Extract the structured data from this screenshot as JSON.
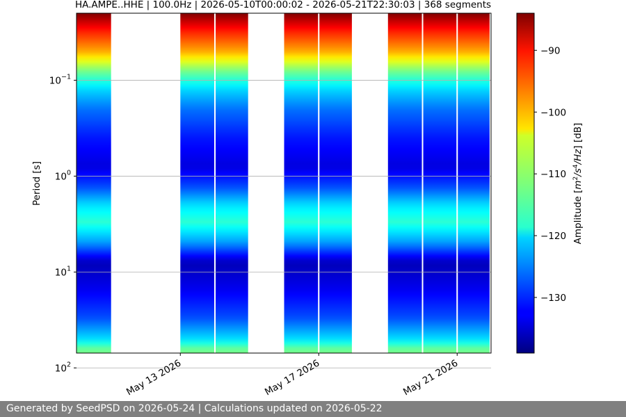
{
  "chart_data": {
    "type": "heatmap",
    "title": "HA.AMPE..HHE | 100.0Hz | 2026-05-10T00:00:02 - 2026-05-21T22:30:03 | 368 segments",
    "ylabel": "Period [s]",
    "y_scale": "log",
    "y_inverted": true,
    "ylim_s": [
      0.02,
      70
    ],
    "y_ticks": [
      {
        "value": 0.1,
        "base": "10",
        "exp": "−1"
      },
      {
        "value": 1,
        "base": "10",
        "exp": "0"
      },
      {
        "value": 10,
        "base": "10",
        "exp": "1"
      },
      {
        "value": 100,
        "base": "10",
        "exp": "2"
      }
    ],
    "x_type": "date",
    "x_ticks": [
      "May 13 2026",
      "May 17 2026",
      "May 21 2026"
    ],
    "data_blocks": [
      {
        "start": "2026-05-10T00:00:02",
        "end": "2026-05-11T00:00:00"
      },
      {
        "start": "2026-05-13T00:00:00",
        "end": "2026-05-14T23:00:00"
      },
      {
        "start": "2026-05-16T00:00:00",
        "end": "2026-05-17T23:00:00"
      },
      {
        "start": "2026-05-19T00:00:00",
        "end": "2026-05-21T22:30:03"
      }
    ],
    "gap_lines": [
      "2026-05-14T00:00:00",
      "2026-05-17T00:00:00",
      "2026-05-20T00:00:00",
      "2026-05-21T00:00:00"
    ],
    "colorbar": {
      "label_prefix": "Amplitude [",
      "unit_m": "m",
      "unit_m_exp": "2",
      "unit_slash": "/s",
      "unit_s_exp": "4",
      "unit_hz": "/Hz",
      "label_suffix": "] [dB]",
      "range_db": [
        -139,
        -84
      ],
      "ticks": [
        "−90",
        "−100",
        "−110",
        "−120",
        "−130"
      ],
      "tick_values": [
        -90,
        -100,
        -110,
        -120,
        -130
      ],
      "colormap": "jet"
    },
    "amplitude_profile": [
      {
        "period_s": 0.02,
        "db": -84
      },
      {
        "period_s": 0.03,
        "db": -92
      },
      {
        "period_s": 0.05,
        "db": -100
      },
      {
        "period_s": 0.08,
        "db": -112
      },
      {
        "period_s": 0.12,
        "db": -120
      },
      {
        "period_s": 0.2,
        "db": -126
      },
      {
        "period_s": 0.4,
        "db": -131
      },
      {
        "period_s": 0.8,
        "db": -134
      },
      {
        "period_s": 1.3,
        "db": -128
      },
      {
        "period_s": 2,
        "db": -120
      },
      {
        "period_s": 3,
        "db": -116
      },
      {
        "period_s": 5,
        "db": -124
      },
      {
        "period_s": 8,
        "db": -136
      },
      {
        "period_s": 15,
        "db": -133
      },
      {
        "period_s": 30,
        "db": -128
      },
      {
        "period_s": 50,
        "db": -120
      },
      {
        "period_s": 65,
        "db": -112
      }
    ],
    "grid": true
  },
  "footer": "Generated by SeedPSD on 2026-05-24 | Calculations updated on 2026-05-22"
}
